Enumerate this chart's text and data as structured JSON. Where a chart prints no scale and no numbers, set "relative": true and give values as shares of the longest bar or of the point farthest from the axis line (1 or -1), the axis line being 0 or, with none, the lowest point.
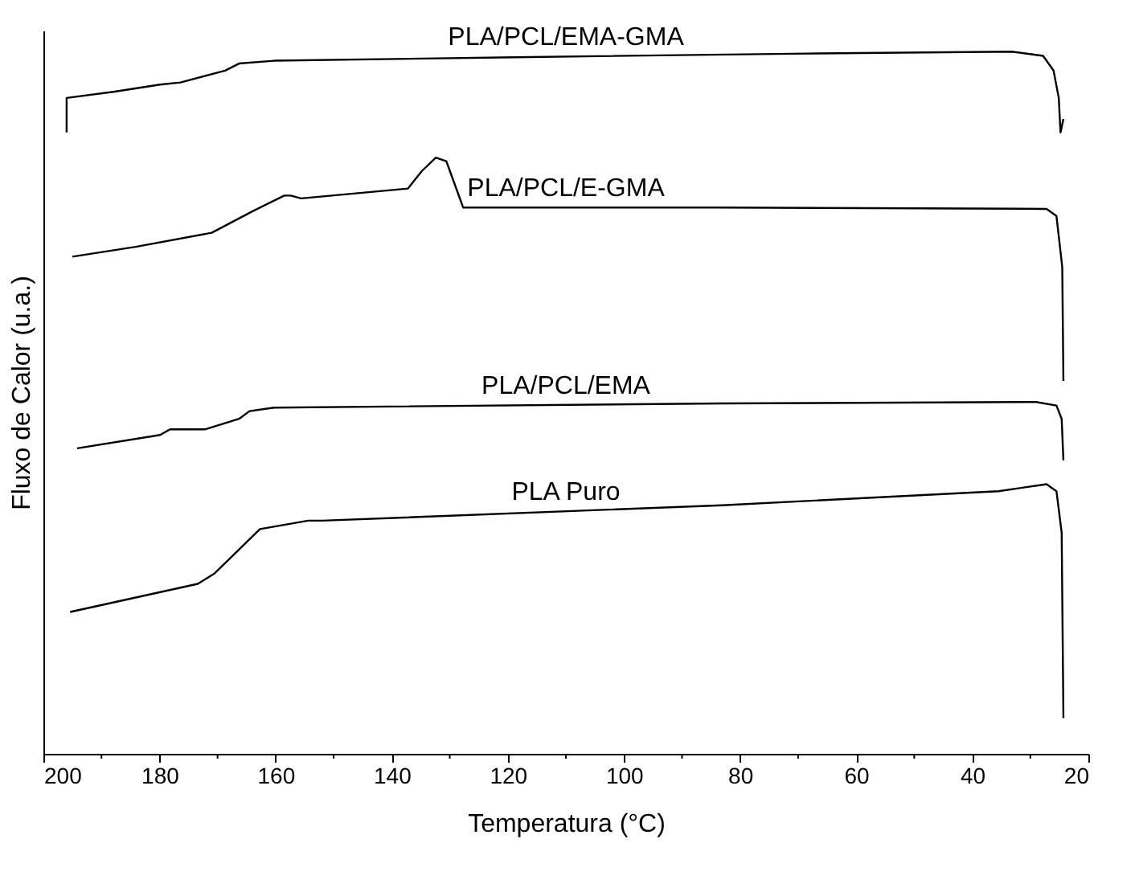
{
  "chart_data": {
    "type": "line",
    "relative": true,
    "xlabel": "Temperatura (°C)",
    "ylabel": "Fluxo de Calor (u.a.)",
    "xlim": [
      200,
      20
    ],
    "xticks": [
      200,
      {
        "value": 190,
        "label": null
      },
      180,
      {
        "value": 170,
        "label": null
      },
      160,
      {
        "value": 150,
        "label": null
      },
      140,
      {
        "value": 130,
        "label": null
      },
      120,
      {
        "value": 110,
        "label": null
      },
      100,
      {
        "value": 90,
        "label": null
      },
      80,
      {
        "value": 70,
        "label": null
      },
      60,
      {
        "value": 50,
        "label": null
      },
      40,
      {
        "value": 30,
        "label": null
      },
      20
    ],
    "grid": false,
    "legend": false,
    "marker": "none",
    "line_style": "solid",
    "series": [
      {
        "name": "PLA/PCL/EMA-GMA",
        "color": "#000000",
        "x": [
          196.0,
          196.0,
          187.7,
          179.9,
          176.4,
          168.7,
          166.3,
          160.3,
          118.7,
          71.2,
          33.2,
          27.8,
          26.0,
          25.1,
          24.8,
          24.3
        ],
        "values": [
          0.885,
          0.934,
          0.943,
          0.953,
          0.956,
          0.973,
          0.983,
          0.987,
          0.992,
          0.997,
          1.0,
          0.994,
          0.973,
          0.934,
          0.885,
          0.904
        ]
      },
      {
        "name": "PLA/PCL/E-GMA",
        "color": "#000000",
        "x": [
          195.0,
          184.1,
          171.0,
          163.9,
          158.5,
          157.4,
          155.6,
          137.2,
          134.8,
          132.4,
          130.6,
          127.7,
          83.1,
          27.2,
          25.5,
          24.5,
          24.3
        ],
        "values": [
          0.708,
          0.722,
          0.742,
          0.773,
          0.795,
          0.795,
          0.791,
          0.805,
          0.83,
          0.849,
          0.844,
          0.778,
          0.778,
          0.776,
          0.766,
          0.693,
          0.531
        ]
      },
      {
        "name": "PLA/PCL/EMA",
        "color": "#000000",
        "x": [
          194.2,
          179.9,
          178.2,
          172.2,
          166.3,
          164.5,
          160.3,
          83.1,
          29.0,
          25.5,
          24.6,
          24.3
        ],
        "values": [
          0.435,
          0.454,
          0.462,
          0.462,
          0.477,
          0.488,
          0.493,
          0.499,
          0.501,
          0.496,
          0.477,
          0.418
        ]
      },
      {
        "name": "PLA Puro",
        "color": "#000000",
        "x": [
          195.4,
          173.4,
          170.5,
          162.7,
          154.4,
          152.0,
          83.1,
          35.5,
          27.2,
          25.5,
          24.6,
          24.3
        ],
        "values": [
          0.202,
          0.242,
          0.257,
          0.32,
          0.332,
          0.332,
          0.354,
          0.374,
          0.384,
          0.374,
          0.315,
          0.051
        ]
      }
    ]
  }
}
